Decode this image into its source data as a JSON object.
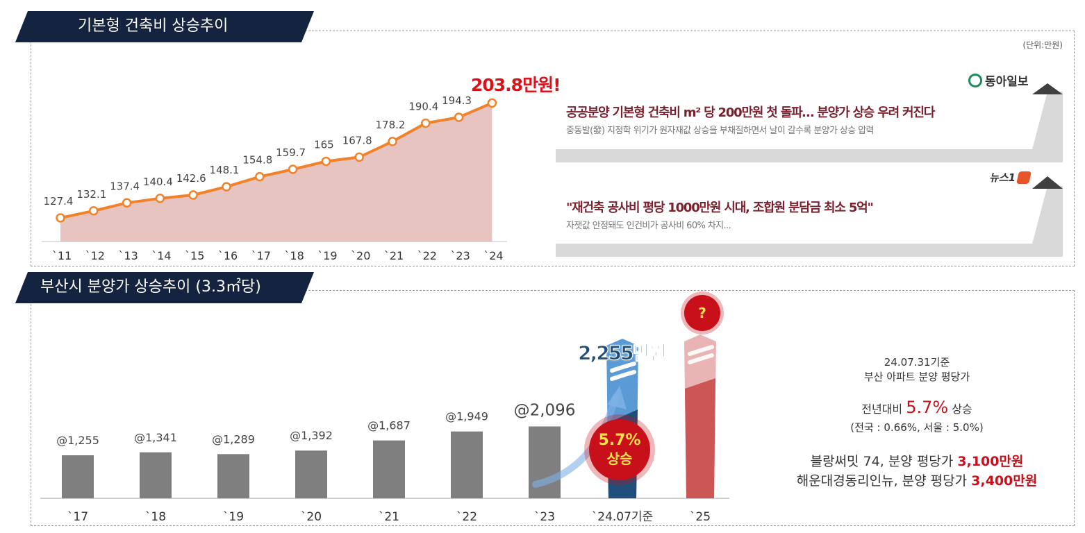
{
  "top_section": {
    "title": "기본형 건축비 상승추이",
    "unit": "(단위:만원)",
    "highlight": "203.8만원!"
  },
  "news": [
    {
      "source": "동아일보",
      "title": "공공분양 기본형 건축비 m² 당 200만원 첫 돌파… 분양가 상승 우려 커진다",
      "subtitle": "중동발(發) 지정학 위기가 원자재값 상승을 부채질하면서 날이 갈수록 분양가 상승 압력"
    },
    {
      "source": "뉴스1",
      "title": "\"재건축 공사비 평당 1000만원 시대, 조합원 분담금 최소 5억\"",
      "subtitle": "자잿값 안정돼도 인건비가 공사비 60% 차지..."
    }
  ],
  "bottom_section": {
    "title": "부산시 분양가 상승추이 (3.3㎡당)",
    "callout_value": "2,255만원",
    "growth_badge": [
      "5.7%",
      "상승"
    ],
    "question": "?"
  },
  "right_info": {
    "date_line": "24.07.31기준",
    "desc_line": "부산 아파트 분양 평당가",
    "yoy_prefix": "전년대비",
    "yoy_value": "5.7%",
    "yoy_suffix": "상승",
    "compare": "(전국 : 0.66%, 서울 : 5.0%)",
    "item1_prefix": "블랑써밋 74, 분양 평당가",
    "item1_value": "3,100만원",
    "item2_prefix": "해운대경동리인뉴, 분양 평당가",
    "item2_value": "3,400만원"
  },
  "chart_data": [
    {
      "type": "area",
      "title": "기본형 건축비 상승추이",
      "categories": [
        "`11",
        "`12",
        "`13",
        "`14",
        "`15",
        "`16",
        "`17",
        "`18",
        "`19",
        "`20",
        "`21",
        "`22",
        "`23",
        "`24"
      ],
      "values": [
        127.4,
        132.1,
        137.4,
        140.4,
        142.6,
        148.1,
        154.8,
        159.7,
        165,
        167.8,
        178.2,
        190.4,
        194.3,
        203.8
      ],
      "labels": [
        "127.4",
        "132.1",
        "137.4",
        "140.4",
        "142.6",
        "148.1",
        "154.8",
        "159.7",
        "165",
        "167.8",
        "178.2",
        "190.4",
        "194.3",
        ""
      ],
      "ylim": [
        100,
        215
      ],
      "colors": {
        "line": "#f0822a",
        "area": "#e8c4c1"
      }
    },
    {
      "type": "bar",
      "title": "부산시 분양가 상승추이 (3.3㎡당)",
      "categories": [
        "`17",
        "`18",
        "`19",
        "`20",
        "`21",
        "`22",
        "`23",
        "`24.07기준",
        "`25"
      ],
      "values": [
        1255,
        1341,
        1289,
        1392,
        1687,
        1949,
        2096,
        2255,
        null
      ],
      "labels": [
        "@1,255",
        "@1,341",
        "@1,289",
        "@1,392",
        "@1,687",
        "@1,949",
        "@2,096",
        "",
        ""
      ],
      "ylim": [
        0,
        3000
      ],
      "colors": {
        "bar": "#7f7f7f",
        "current": "#1f4e7a",
        "forecast": "#cc5555"
      }
    }
  ]
}
